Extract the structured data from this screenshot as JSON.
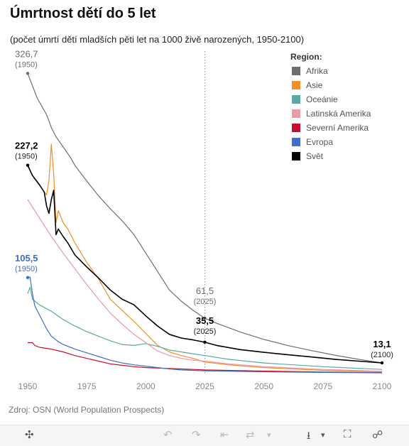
{
  "title": "Úmrtnost dětí do 5 let",
  "subtitle": "(počet úmrtí dětí mladších pěti let na 1000 živě narozených, 1950-2100)",
  "source": "Zdroj: OSN (World Population Prospects)",
  "toolbar": {
    "move_icon": "✣",
    "undo_icon": "↶",
    "redo_icon": "↷",
    "revert_icon": "⇤",
    "refresh_icon": "⇄",
    "dropdown_icon": "▾",
    "download_icon": "⭳",
    "fullscreen_icon": "⛶",
    "share_icon": "☍"
  },
  "chart_data": {
    "type": "line",
    "xlim": [
      1950,
      2100
    ],
    "ylim": [
      0,
      340
    ],
    "x_ticks": [
      1950,
      1975,
      2000,
      2025,
      2050,
      2075,
      2100
    ],
    "x_tick_labels": [
      "1950",
      "1975",
      "2000",
      "2025",
      "2050",
      "2075",
      "2100"
    ],
    "reference_year": 2025,
    "grid": false,
    "legend_title": "Region:",
    "legend_position": "top-right",
    "series": [
      {
        "name": "Afrika",
        "color": "#6e6e6e",
        "points": [
          [
            1950,
            326.7
          ],
          [
            1954,
            300
          ],
          [
            1958,
            282
          ],
          [
            1960,
            268
          ],
          [
            1962,
            258
          ],
          [
            1965,
            247
          ],
          [
            1968,
            236
          ],
          [
            1970,
            227
          ],
          [
            1975,
            210
          ],
          [
            1980,
            194
          ],
          [
            1985,
            180
          ],
          [
            1990,
            167
          ],
          [
            1995,
            152
          ],
          [
            2000,
            132
          ],
          [
            2005,
            112
          ],
          [
            2010,
            92
          ],
          [
            2015,
            80
          ],
          [
            2020,
            70
          ],
          [
            2025,
            61.5
          ],
          [
            2030,
            56
          ],
          [
            2040,
            46.5
          ],
          [
            2050,
            38.5
          ],
          [
            2060,
            32
          ],
          [
            2070,
            26.5
          ],
          [
            2080,
            21.5
          ],
          [
            2090,
            17
          ],
          [
            2100,
            13.1
          ]
        ]
      },
      {
        "name": "Asie",
        "color": "#f28e2b",
        "points": [
          [
            1950,
            226
          ],
          [
            1953,
            212
          ],
          [
            1956,
            202
          ],
          [
            1958,
            195
          ],
          [
            1959,
            210
          ],
          [
            1960,
            250
          ],
          [
            1961,
            218
          ],
          [
            1962,
            165
          ],
          [
            1963,
            178
          ],
          [
            1965,
            165
          ],
          [
            1967,
            158
          ],
          [
            1970,
            143
          ],
          [
            1975,
            122
          ],
          [
            1980,
            104
          ],
          [
            1985,
            82
          ],
          [
            1990,
            70
          ],
          [
            1995,
            58
          ],
          [
            2000,
            45
          ],
          [
            2005,
            32
          ],
          [
            2010,
            25
          ],
          [
            2015,
            21
          ],
          [
            2020,
            18
          ],
          [
            2025,
            14
          ],
          [
            2035,
            11
          ],
          [
            2050,
            8
          ],
          [
            2075,
            5
          ],
          [
            2100,
            3.5
          ]
        ]
      },
      {
        "name": "Oceánie",
        "color": "#59a9a5",
        "points": [
          [
            1950,
            88
          ],
          [
            1951,
            95
          ],
          [
            1952,
            82
          ],
          [
            1955,
            76
          ],
          [
            1960,
            69
          ],
          [
            1965,
            60
          ],
          [
            1970,
            53
          ],
          [
            1975,
            47
          ],
          [
            1980,
            42
          ],
          [
            1985,
            37
          ],
          [
            1990,
            33
          ],
          [
            1995,
            32
          ],
          [
            2000,
            34
          ],
          [
            2005,
            31
          ],
          [
            2010,
            27
          ],
          [
            2015,
            25
          ],
          [
            2020,
            23
          ],
          [
            2025,
            21
          ],
          [
            2035,
            17
          ],
          [
            2050,
            13
          ],
          [
            2075,
            9
          ],
          [
            2100,
            6
          ]
        ]
      },
      {
        "name": "Latinská Amerika",
        "color": "#e89aa6",
        "points": [
          [
            1950,
            190
          ],
          [
            1955,
            170
          ],
          [
            1960,
            150
          ],
          [
            1965,
            132
          ],
          [
            1970,
            115
          ],
          [
            1975,
            98
          ],
          [
            1980,
            82
          ],
          [
            1985,
            67
          ],
          [
            1990,
            55
          ],
          [
            1995,
            44
          ],
          [
            2000,
            35
          ],
          [
            2005,
            26
          ],
          [
            2010,
            21
          ],
          [
            2015,
            18
          ],
          [
            2020,
            16
          ],
          [
            2025,
            15
          ],
          [
            2035,
            12
          ],
          [
            2050,
            9
          ],
          [
            2075,
            6
          ],
          [
            2100,
            4
          ]
        ]
      },
      {
        "name": "Severní Amerika",
        "color": "#c8102e",
        "points": [
          [
            1950,
            35
          ],
          [
            1952,
            35
          ],
          [
            1953,
            32
          ],
          [
            1955,
            30
          ],
          [
            1960,
            28
          ],
          [
            1965,
            25
          ],
          [
            1970,
            21
          ],
          [
            1975,
            18
          ],
          [
            1980,
            15
          ],
          [
            1985,
            12
          ],
          [
            1990,
            10.5
          ],
          [
            1995,
            9
          ],
          [
            2000,
            8
          ],
          [
            2005,
            7.5
          ],
          [
            2010,
            7
          ],
          [
            2015,
            6.5
          ],
          [
            2020,
            6
          ],
          [
            2025,
            5.5
          ],
          [
            2050,
            4.2
          ],
          [
            2075,
            3.2
          ],
          [
            2100,
            2.6
          ]
        ]
      },
      {
        "name": "Evropa",
        "color": "#3e6ec6",
        "points": [
          [
            1950,
            105.5
          ],
          [
            1951,
            106
          ],
          [
            1952,
            88
          ],
          [
            1953,
            75
          ],
          [
            1955,
            65
          ],
          [
            1958,
            50
          ],
          [
            1960,
            42
          ],
          [
            1963,
            36
          ],
          [
            1965,
            33
          ],
          [
            1970,
            28
          ],
          [
            1975,
            24
          ],
          [
            1980,
            20
          ],
          [
            1985,
            16
          ],
          [
            1990,
            13
          ],
          [
            1995,
            11
          ],
          [
            2000,
            9.5
          ],
          [
            2005,
            8
          ],
          [
            2010,
            6.5
          ],
          [
            2015,
            5.5
          ],
          [
            2020,
            5
          ],
          [
            2025,
            4.5
          ],
          [
            2050,
            3.5
          ],
          [
            2075,
            2.8
          ],
          [
            2100,
            2.3
          ]
        ]
      },
      {
        "name": "Svět",
        "color": "#000000",
        "points": [
          [
            1950,
            227.2
          ],
          [
            1952,
            216
          ],
          [
            1955,
            206
          ],
          [
            1957,
            198
          ],
          [
            1958,
            183
          ],
          [
            1959,
            175
          ],
          [
            1960,
            190
          ],
          [
            1961,
            200
          ],
          [
            1962,
            152
          ],
          [
            1963,
            158
          ],
          [
            1965,
            150
          ],
          [
            1967,
            143
          ],
          [
            1970,
            130
          ],
          [
            1975,
            117
          ],
          [
            1980,
            105
          ],
          [
            1985,
            92
          ],
          [
            1990,
            82
          ],
          [
            1995,
            76
          ],
          [
            2000,
            64
          ],
          [
            2005,
            53
          ],
          [
            2010,
            44
          ],
          [
            2015,
            40
          ],
          [
            2020,
            38
          ],
          [
            2025,
            35.5
          ],
          [
            2030,
            32
          ],
          [
            2040,
            27.5
          ],
          [
            2050,
            24.5
          ],
          [
            2060,
            22
          ],
          [
            2070,
            19.5
          ],
          [
            2080,
            17
          ],
          [
            2090,
            15
          ],
          [
            2100,
            13.1
          ]
        ]
      }
    ],
    "annotations": [
      {
        "series": "Afrika",
        "x": 1950,
        "y": 326.7,
        "value_label": "326,7",
        "year_label": "(1950)",
        "color": "#6e6e6e",
        "align": "left"
      },
      {
        "series": "Svět",
        "x": 1950,
        "y": 227.2,
        "value_label": "227,2",
        "year_label": "(1950)",
        "color": "#000000",
        "align": "left"
      },
      {
        "series": "Evropa",
        "x": 1950,
        "y": 105.5,
        "value_label": "105,5",
        "year_label": "(1950)",
        "color": "#3e6ec6",
        "align": "left"
      },
      {
        "series": "Afrika",
        "x": 2025,
        "y": 61.5,
        "value_label": "61,5",
        "year_label": "(2025)",
        "color": "#6e6e6e",
        "align": "center"
      },
      {
        "series": "Svět",
        "x": 2025,
        "y": 35.5,
        "value_label": "35,5",
        "year_label": "(2025)",
        "color": "#000000",
        "align": "center"
      },
      {
        "series": "Svět",
        "x": 2100,
        "y": 13.1,
        "value_label": "13,1",
        "year_label": "(2100)",
        "color": "#000000",
        "align": "center"
      }
    ]
  }
}
